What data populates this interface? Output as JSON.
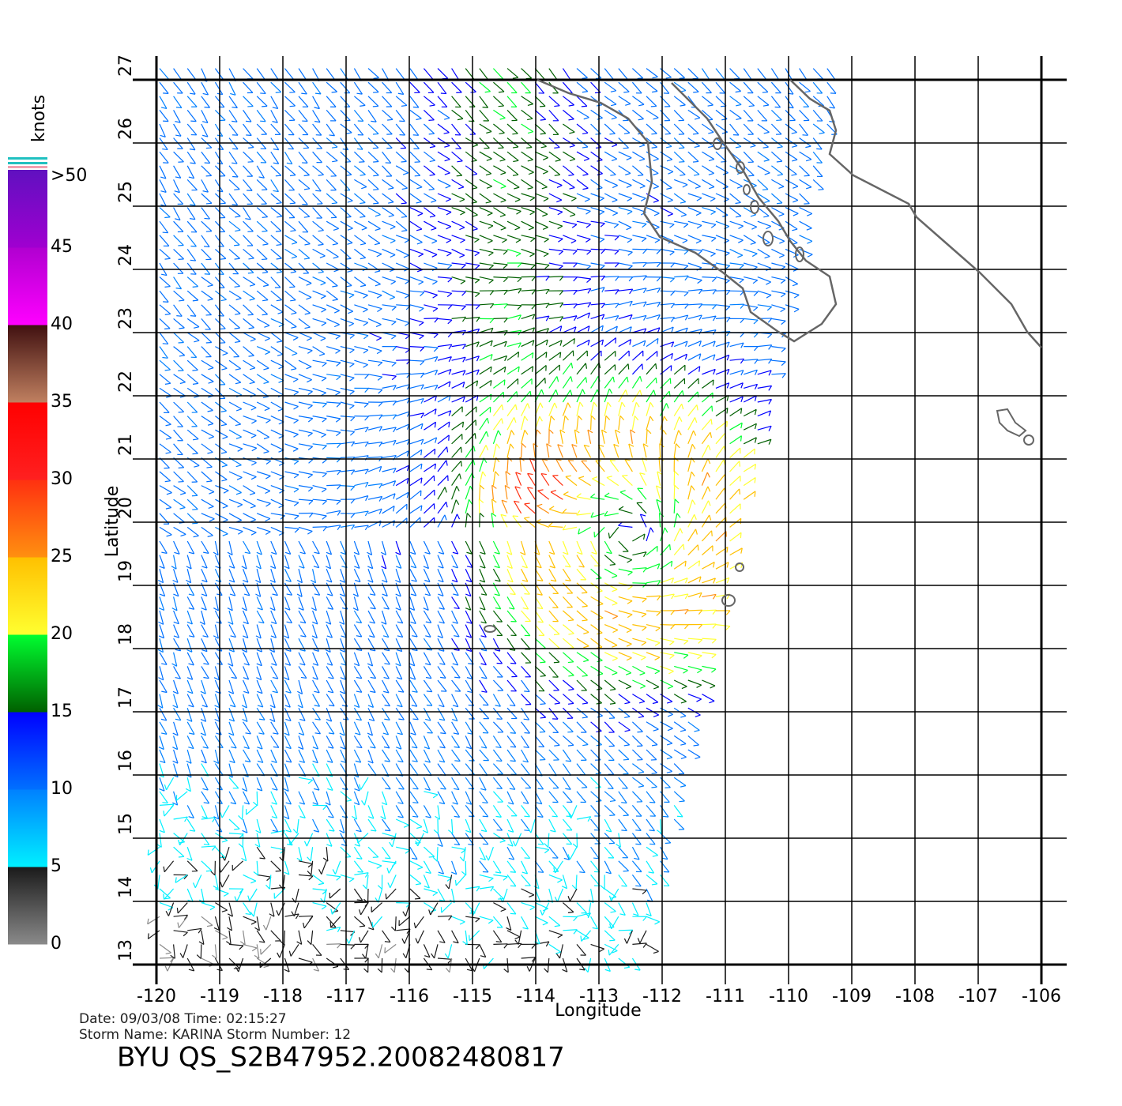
{
  "chart_data": {
    "type": "map",
    "xlabel": "Longitude",
    "ylabel": "Latitude",
    "xlim": [
      -120,
      -106
    ],
    "ylim": [
      13,
      27
    ],
    "xticks": [
      -120,
      -119,
      -118,
      -117,
      -116,
      -115,
      -114,
      -113,
      -112,
      -111,
      -110,
      -109,
      -108,
      -107,
      -106
    ],
    "yticks": [
      13,
      14,
      15,
      16,
      17,
      18,
      19,
      20,
      21,
      22,
      23,
      24,
      25,
      26,
      27
    ],
    "grid": true,
    "colorbar": {
      "title": "knots",
      "ticks": [
        0,
        5,
        10,
        15,
        20,
        25,
        30,
        35,
        40,
        45,
        {
          "value": 50,
          "label": ">50"
        }
      ],
      "segments": [
        [
          "#8a8a8a",
          "#1a1a1a"
        ],
        [
          "#00f0ff",
          "#0080ff"
        ],
        [
          "#0070ff",
          "#0000ff"
        ],
        [
          "#006000",
          "#00ff30"
        ],
        [
          "#ffff30",
          "#ffc000"
        ],
        [
          "#ff9010",
          "#ff3010"
        ],
        [
          "#ff2020",
          "#ff0000"
        ],
        [
          "#c08060",
          "#401010"
        ],
        [
          "#ff00ff",
          "#b000d0"
        ],
        [
          "#a000d0",
          "#6010c0"
        ]
      ]
    }
  },
  "info": {
    "line1": "Date: 09/03/08   Time: 02:15:27",
    "line2": "Storm Name: KARINA   Storm Number: 12",
    "title": "BYU  QS_S2B47952.20082480817"
  }
}
